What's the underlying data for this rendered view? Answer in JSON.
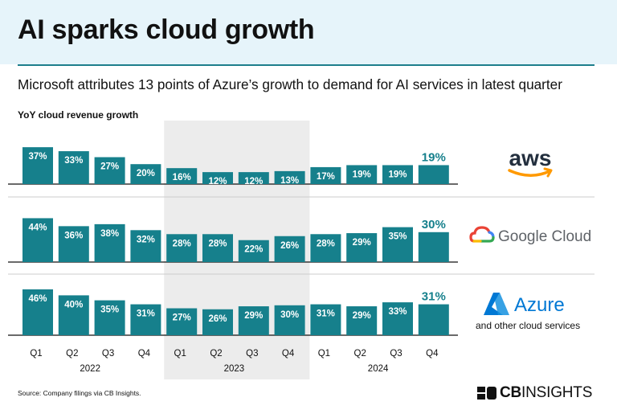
{
  "title": "AI sparks cloud growth",
  "subtitle": "Microsoft attributes 13 points of Azure’s growth to demand for AI services in latest quarter",
  "source": "Source: Company filings via CB Insights.",
  "footer_logo": {
    "bold": "CB",
    "rest": "INSIGHTS"
  },
  "colors": {
    "bar": "#16808c",
    "highlight_band": "#ececec",
    "header_band": "#e6f4fa",
    "accent_text": "#16808c",
    "divider": "#cccccc"
  },
  "chart_data": {
    "type": "bar",
    "title": "AI sparks cloud growth",
    "ylabel": "YoY cloud revenue growth",
    "xlabel": "",
    "categories": [
      "Q1",
      "Q2",
      "Q3",
      "Q4",
      "Q1",
      "Q2",
      "Q3",
      "Q4",
      "Q1",
      "Q2",
      "Q3",
      "Q4"
    ],
    "years": [
      {
        "label": "2022",
        "start": 0,
        "end": 3
      },
      {
        "label": "2023",
        "start": 4,
        "end": 7
      },
      {
        "label": "2024",
        "start": 8,
        "end": 11
      }
    ],
    "highlighted_year": "2023",
    "unit": "%",
    "ylim": [
      0,
      50
    ],
    "series": [
      {
        "name": "AWS",
        "brand_text": "aws",
        "labels": [
          "37%",
          "33%",
          "27%",
          "20%",
          "16%",
          "12%",
          "12%",
          "13%",
          "17%",
          "19%",
          "19%",
          "19%"
        ],
        "values": [
          37,
          33,
          27,
          20,
          16,
          12,
          12,
          13,
          17,
          19,
          19,
          19
        ]
      },
      {
        "name": "Google Cloud",
        "brand_text": "Google Cloud",
        "labels": [
          "44%",
          "36%",
          "38%",
          "32%",
          "28%",
          "28%",
          "22%",
          "26%",
          "28%",
          "29%",
          "35%",
          "30%"
        ],
        "values": [
          44,
          36,
          38,
          32,
          28,
          28,
          22,
          26,
          28,
          29,
          35,
          30
        ]
      },
      {
        "name": "Azure",
        "brand_text": "Azure",
        "brand_subtext": "and other cloud services",
        "labels": [
          "46%",
          "40%",
          "35%",
          "31%",
          "27%",
          "26%",
          "29%",
          "30%",
          "31%",
          "29%",
          "33%",
          "31%"
        ],
        "values": [
          46,
          40,
          35,
          31,
          27,
          26,
          29,
          30,
          31,
          29,
          33,
          31
        ]
      }
    ]
  }
}
